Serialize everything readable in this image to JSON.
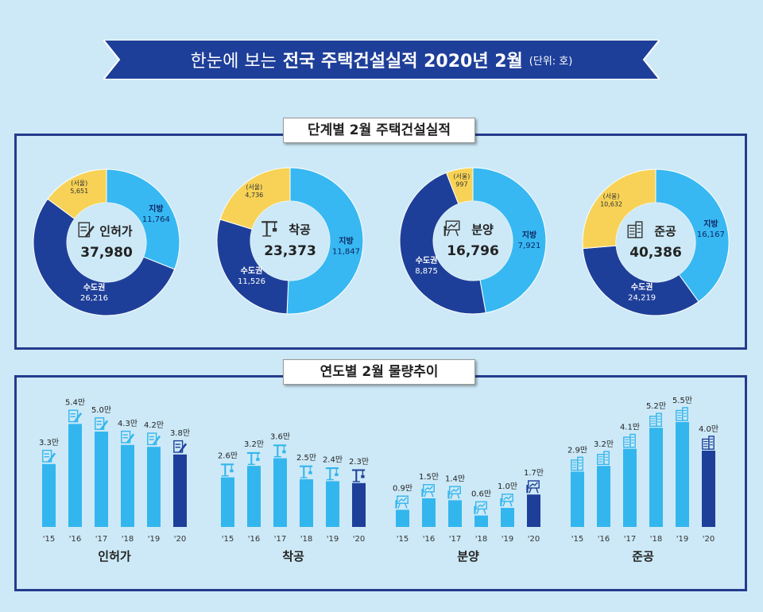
{
  "header": {
    "prefix": "한눈에 보는",
    "title": "전국 주택건설실적 2020년 2월",
    "unit": "(단위: 호)"
  },
  "colors": {
    "sudogwon": "#1e3f99",
    "jibang": "#37b8f2",
    "seoul": "#f7d256",
    "bar_past": "#33b6ee",
    "bar_current": "#1e3f99",
    "frame": "#243c8c"
  },
  "panel1": {
    "title": "단계별 2월 주택건설실적"
  },
  "panel2": {
    "title": "연도별 2월 물량추이"
  },
  "chart_data": [
    {
      "type": "pie",
      "title": "단계별 2월 주택건설실적",
      "donuts": [
        {
          "stage": "인허가",
          "icon": "permit-document-icon",
          "total": "37,980",
          "slices": [
            {
              "label": "지방",
              "display": "11,764",
              "value": 11764
            },
            {
              "label": "수도권",
              "display": "26,216",
              "value": 26216
            },
            {
              "label": "(서울)",
              "display": "5,651",
              "value": 5651
            }
          ]
        },
        {
          "stage": "착공",
          "icon": "crane-icon",
          "total": "23,373",
          "slices": [
            {
              "label": "지방",
              "display": "11,847",
              "value": 11847
            },
            {
              "label": "수도권",
              "display": "11,526",
              "value": 11526
            },
            {
              "label": "(서울)",
              "display": "4,736",
              "value": 4736
            }
          ]
        },
        {
          "stage": "분양",
          "icon": "presentation-board-icon",
          "total": "16,796",
          "slices": [
            {
              "label": "지방",
              "display": "7,921",
              "value": 7921
            },
            {
              "label": "수도권",
              "display": "8,875",
              "value": 8875
            },
            {
              "label": "(서울)",
              "display": "997",
              "value": 997
            }
          ]
        },
        {
          "stage": "준공",
          "icon": "building-icon",
          "total": "40,386",
          "slices": [
            {
              "label": "지방",
              "display": "16,167",
              "value": 16167
            },
            {
              "label": "수도권",
              "display": "24,219",
              "value": 24219
            },
            {
              "label": "(서울)",
              "display": "10,632",
              "value": 10632
            }
          ]
        }
      ]
    },
    {
      "type": "bar",
      "title": "연도별 2월 물량추이",
      "categories": [
        "'15",
        "'16",
        "'17",
        "'18",
        "'19",
        "'20"
      ],
      "series": [
        {
          "name": "인허가",
          "icon": "permit-document-icon",
          "values": [
            3.3,
            5.4,
            5.0,
            4.3,
            4.2,
            3.8
          ],
          "labels": [
            "3.3만",
            "5.4만",
            "5.0만",
            "4.3만",
            "4.2만",
            "3.8만"
          ]
        },
        {
          "name": "착공",
          "icon": "crane-icon",
          "values": [
            2.6,
            3.2,
            3.6,
            2.5,
            2.4,
            2.3
          ],
          "labels": [
            "2.6만",
            "3.2만",
            "3.6만",
            "2.5만",
            "2.4만",
            "2.3만"
          ]
        },
        {
          "name": "분양",
          "icon": "presentation-board-icon",
          "values": [
            0.9,
            1.5,
            1.4,
            0.6,
            1.0,
            1.7
          ],
          "labels": [
            "0.9만",
            "1.5만",
            "1.4만",
            "0.6만",
            "1.0만",
            "1.7만"
          ]
        },
        {
          "name": "준공",
          "icon": "building-icon",
          "values": [
            2.9,
            3.2,
            4.1,
            5.2,
            5.5,
            4.0
          ],
          "labels": [
            "2.9만",
            "3.2만",
            "4.1만",
            "5.2만",
            "5.5만",
            "4.0만"
          ]
        }
      ]
    }
  ]
}
